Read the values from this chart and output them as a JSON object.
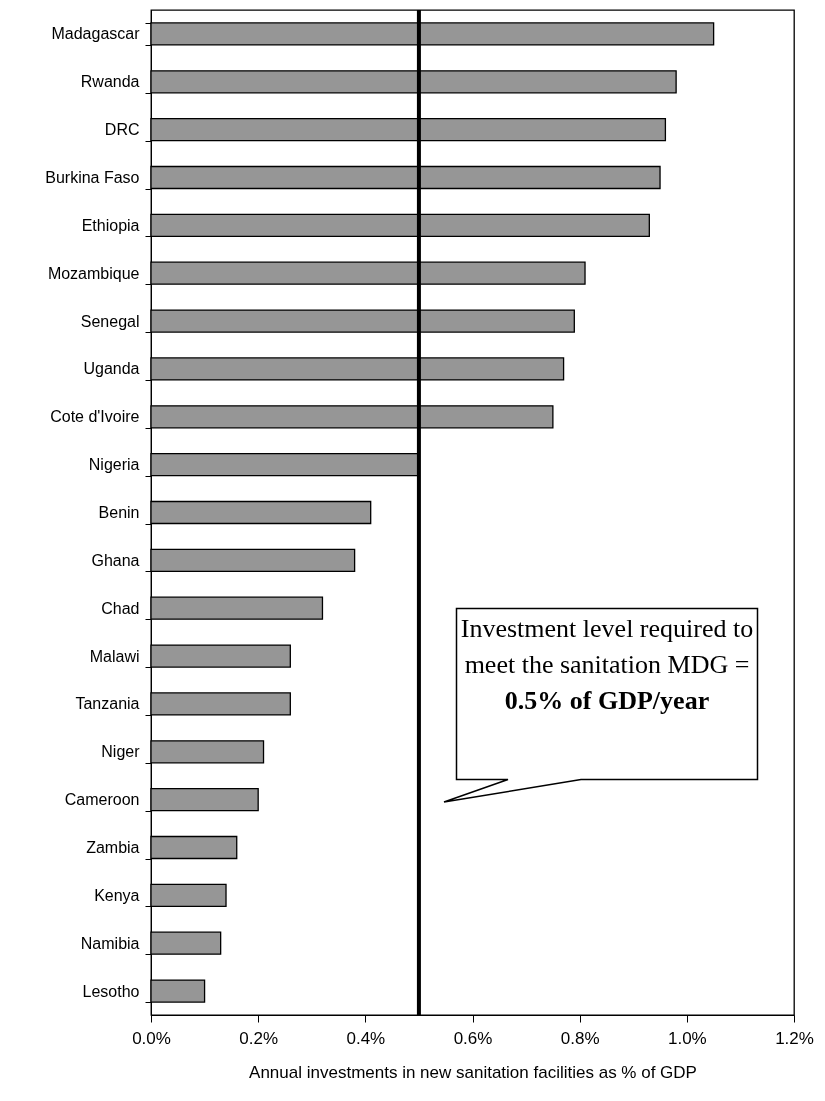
{
  "chart_data": {
    "type": "bar",
    "orientation": "horizontal",
    "categories": [
      "Madagascar",
      "Rwanda",
      "DRC",
      "Burkina Faso",
      "Ethiopia",
      "Mozambique",
      "Senegal",
      "Uganda",
      "Cote d'Ivoire",
      "Nigeria",
      "Benin",
      "Ghana",
      "Chad",
      "Malawi",
      "Tanzania",
      "Niger",
      "Cameroon",
      "Zambia",
      "Kenya",
      "Namibia",
      "Lesotho"
    ],
    "values": [
      1.05,
      0.98,
      0.96,
      0.95,
      0.93,
      0.81,
      0.79,
      0.77,
      0.75,
      0.5,
      0.41,
      0.38,
      0.32,
      0.26,
      0.26,
      0.21,
      0.2,
      0.16,
      0.14,
      0.13,
      0.1
    ],
    "color": "#969696",
    "xlim": [
      0,
      1.2
    ],
    "xticks": [
      {
        "value": 0,
        "label": "0.0%"
      },
      {
        "value": 0.2,
        "label": "0.2%"
      },
      {
        "value": 0.4,
        "label": "0.4%"
      },
      {
        "value": 0.6,
        "label": "0.6%"
      },
      {
        "value": 0.8,
        "label": "0.8%"
      },
      {
        "value": 1.0,
        "label": "1.0%"
      },
      {
        "value": 1.2,
        "label": "1.2%"
      }
    ],
    "xlabel": "Annual investments in new sanitation facilities as % of GDP",
    "grid": false,
    "ref_lines": [
      {
        "axis": "x",
        "value": 0.5,
        "color": "#000000"
      }
    ],
    "annotations": [
      "Investment level required to meet the sanitation MDG =",
      "0.5% of GDP/year"
    ]
  }
}
